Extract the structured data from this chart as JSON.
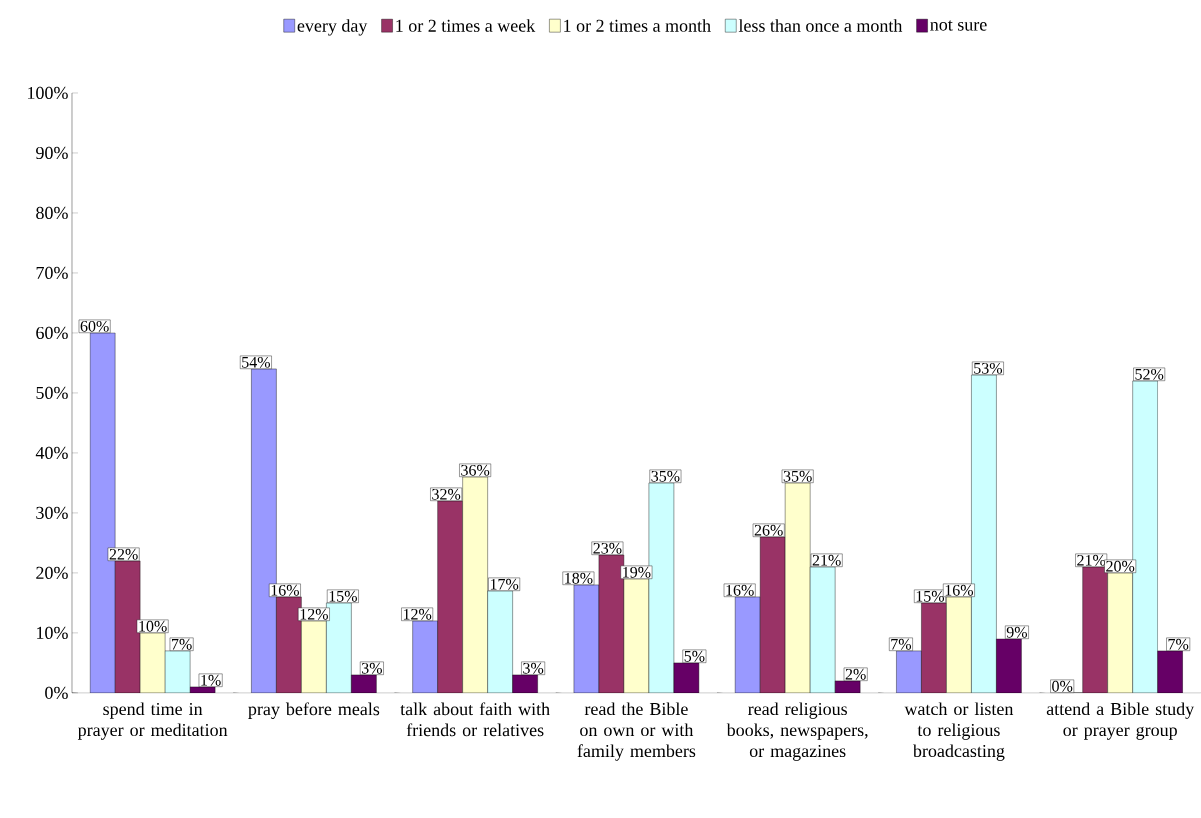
{
  "chart_data": {
    "type": "bar",
    "categories": [
      "spend time in prayer or meditation",
      "pray before meals",
      "talk about faith with friends or relatives",
      "read the Bible on own or with family members",
      "read religious books, newspapers, or magazines",
      "watch or listen to religious broadcasting",
      "attend a Bible study or prayer group"
    ],
    "series": [
      {
        "name": "every day",
        "color": "#9999ff",
        "values": [
          60,
          54,
          12,
          18,
          16,
          7,
          0
        ],
        "value_labels": [
          "60%",
          "54%",
          "12%",
          "18%",
          "16%",
          "7%",
          "0%"
        ]
      },
      {
        "name": "1 or 2 times a week",
        "color": "#993366",
        "values": [
          22,
          16,
          32,
          23,
          26,
          15,
          21
        ],
        "value_labels": [
          "22%",
          "16%",
          "32%",
          "23%",
          "26%",
          "15%",
          "21%"
        ]
      },
      {
        "name": "1 or 2 times a month",
        "color": "#ffffcc",
        "values": [
          10,
          12,
          36,
          19,
          35,
          16,
          20
        ],
        "value_labels": [
          "10%",
          "12%",
          "36%",
          "19%",
          "35%",
          "16%",
          "20%"
        ]
      },
      {
        "name": "less than once a month",
        "color": "#ccffff",
        "values": [
          7,
          15,
          17,
          35,
          21,
          53,
          52
        ],
        "value_labels": [
          "7%",
          "15%",
          "17%",
          "35%",
          "21%",
          "53%",
          "52%"
        ]
      },
      {
        "name": "not sure",
        "color": "#660066",
        "values": [
          1,
          3,
          3,
          5,
          2,
          9,
          7
        ],
        "value_labels": [
          "1%",
          "3%",
          "3%",
          "5%",
          "2%",
          "9%",
          "7%"
        ]
      }
    ],
    "ylim": [
      0,
      100
    ],
    "yticks": [
      {
        "value": 0,
        "label": "0%"
      },
      {
        "value": 10,
        "label": "10%"
      },
      {
        "value": 20,
        "label": "20%"
      },
      {
        "value": 30,
        "label": "30%"
      },
      {
        "value": 40,
        "label": "40%"
      },
      {
        "value": 50,
        "label": "50%"
      },
      {
        "value": 60,
        "label": "60%"
      },
      {
        "value": 70,
        "label": "70%"
      },
      {
        "value": 80,
        "label": "80%"
      },
      {
        "value": 90,
        "label": "90%"
      },
      {
        "value": 100,
        "label": "100%"
      }
    ],
    "legend": "top",
    "grid": false
  }
}
